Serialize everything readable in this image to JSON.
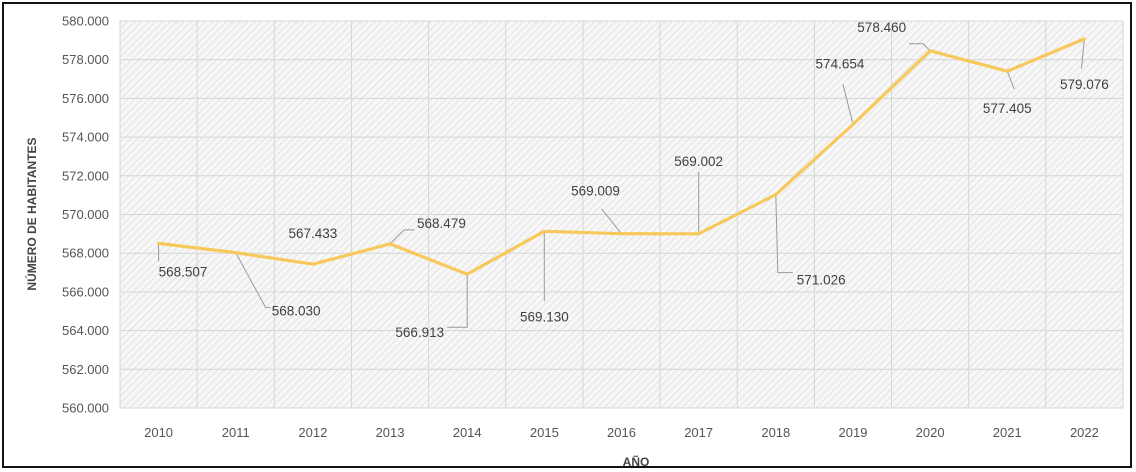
{
  "chart_data": {
    "type": "line",
    "title": "",
    "xlabel": "AÑO",
    "ylabel": "NÚMERO DE HABITANTES",
    "categories": [
      "2010",
      "2011",
      "2012",
      "2013",
      "2014",
      "2015",
      "2016",
      "2017",
      "2018",
      "2019",
      "2020",
      "2021",
      "2022"
    ],
    "series": [
      {
        "values": [
          568507,
          568030,
          567433,
          568479,
          566913,
          569130,
          569009,
          569002,
          571026,
          574654,
          578460,
          577405,
          579076
        ],
        "labels": [
          "568.507",
          "568.030",
          "567.433",
          "568.479",
          "566.913",
          "569.130",
          "569.009",
          "569.002",
          "571.026",
          "574.654",
          "578.460",
          "577.405",
          "579.076"
        ]
      }
    ],
    "ylim": [
      560000,
      580000
    ],
    "ytick_labels": [
      "560.000",
      "562.000",
      "564.000",
      "566.000",
      "568.000",
      "570.000",
      "572.000",
      "574.000",
      "576.000",
      "578.000",
      "580.000"
    ],
    "grid": true,
    "line_color": "#F7C95B",
    "background_pattern": "diagonal-hatch"
  }
}
